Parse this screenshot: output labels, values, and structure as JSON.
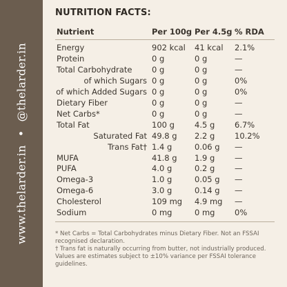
{
  "sidebar": {
    "website": "www.thelarder.in",
    "separator": "•",
    "handle": "@thelarder.in"
  },
  "title": "NUTRITION FACTS:",
  "table": {
    "headers": [
      "Nutrient",
      "Per 100g",
      "Per 4.5g",
      "% RDA"
    ],
    "rows": [
      [
        "Energy",
        "902 kcal",
        "41 kcal",
        "2.1%"
      ],
      [
        "Protein",
        "0 g",
        "0 g",
        "—"
      ],
      [
        "Total Carbohydrate",
        "0 g",
        "0 g",
        "—"
      ],
      [
        "of which Sugars",
        "0 g",
        "0 g",
        "0%"
      ],
      [
        "of which Added Sugars",
        "0 g",
        "0 g",
        "0%"
      ],
      [
        "Dietary Fiber",
        "0 g",
        "0 g",
        "—"
      ],
      [
        "Net Carbs*",
        "0 g",
        "0 g",
        "—"
      ],
      [
        "Total Fat",
        "100 g",
        "4.5 g",
        "6.7%"
      ],
      [
        "Saturated Fat",
        "49.8 g",
        "2.2 g",
        "10.2%"
      ],
      [
        "Trans Fat†",
        "1.4 g",
        "0.06 g",
        "—"
      ],
      [
        "MUFA",
        "41.8 g",
        "1.9 g",
        "—"
      ],
      [
        "PUFA",
        "4.0 g",
        "0.2 g",
        "—"
      ],
      [
        "Omega-3",
        "1.0 g",
        "0.05 g",
        "—"
      ],
      [
        "Omega-6",
        "3.0 g",
        "0.14 g",
        "—"
      ],
      [
        "Cholesterol",
        "109 mg",
        "4.9 mg",
        "—"
      ],
      [
        "Sodium",
        "0 mg",
        "0 mg",
        "0%"
      ]
    ]
  },
  "footnotes": [
    "* Net Carbs = Total Carbohydrates minus Dietary Fiber. Not an FSSAI recognised declaration.",
    "† Trans fat is naturally occurring from butter, not industrially produced.",
    "Values are estimates subject to ±10% variance per FSSAI tolerance guidelines."
  ]
}
